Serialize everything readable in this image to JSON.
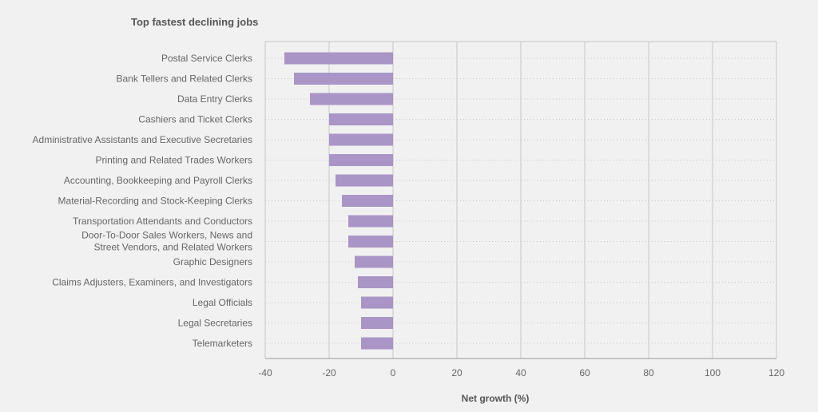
{
  "chart_data": {
    "type": "bar",
    "orientation": "horizontal",
    "title": "Top fastest declining jobs",
    "xlabel": "Net growth (%)",
    "ylabel": "",
    "xlim": [
      -40,
      120
    ],
    "xticks": [
      -40,
      -20,
      0,
      20,
      40,
      60,
      80,
      100,
      120
    ],
    "grid": true,
    "legend": "none",
    "categories": [
      "Postal Service Clerks",
      "Bank Tellers and Related Clerks",
      "Data Entry Clerks",
      "Cashiers and Ticket Clerks",
      "Administrative Assistants and Executive Secretaries",
      "Printing and Related Trades Workers",
      "Accounting, Bookkeeping and Payroll Clerks",
      "Material-Recording and Stock-Keeping Clerks",
      "Transportation Attendants and Conductors",
      [
        "Door-To-Door Sales Workers, News and",
        "Street Vendors, and Related Workers"
      ],
      "Graphic Designers",
      "Claims Adjusters, Examiners, and Investigators",
      "Legal Officials",
      "Legal Secretaries",
      "Telemarketers"
    ],
    "values": [
      -34,
      -31,
      -26,
      -20,
      -20,
      -20,
      -18,
      -16,
      -14,
      -14,
      -12,
      -11,
      -10,
      -10,
      -10
    ],
    "colors": {
      "bar": "#a995c6",
      "grid": "#c8c8c8",
      "axis": "#999999",
      "background": "#f1f1f1"
    }
  }
}
